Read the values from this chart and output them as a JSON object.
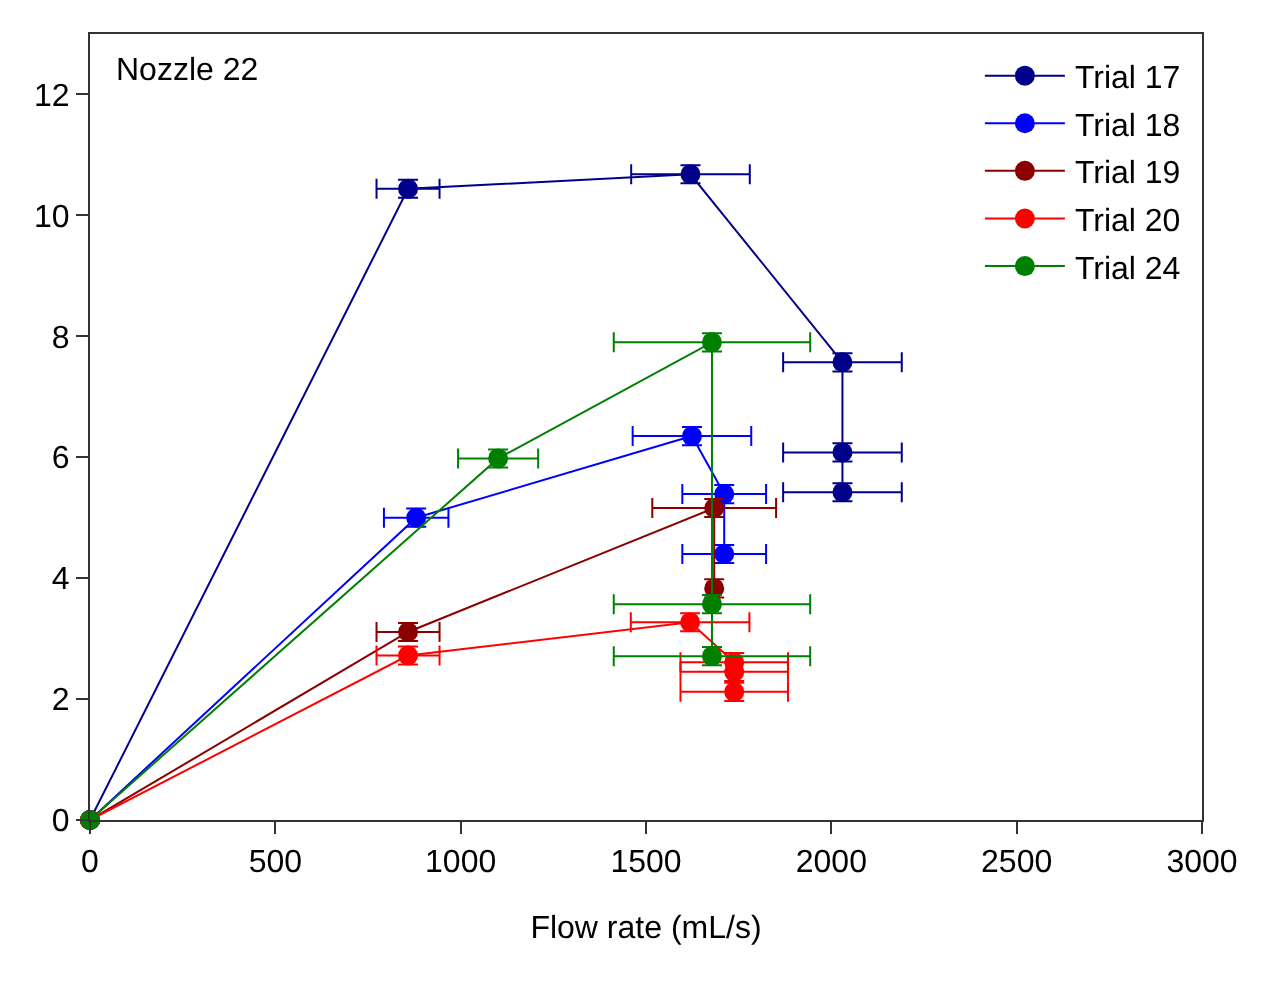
{
  "chart_data": {
    "type": "line",
    "xlabel": "Flow rate (mL/s)",
    "annotations": [
      "Nozzle 22"
    ],
    "xlim": [
      0,
      3000
    ],
    "xticks": [
      0,
      500,
      1000,
      1500,
      2000,
      2500,
      3000
    ],
    "ylim": [
      0,
      13
    ],
    "yticks": [
      0,
      2,
      4,
      6,
      8,
      10,
      12
    ],
    "legend": "top right",
    "marker": "circle",
    "line_style": "solid",
    "series": [
      {
        "name": "Trial 17",
        "color": "#00008b",
        "x": [
          0,
          858,
          1620,
          2030,
          2030,
          2030
        ],
        "values": [
          0,
          10.44,
          10.68,
          7.57,
          6.08,
          5.42
        ],
        "xerrors": [
          null,
          85,
          160,
          160,
          160,
          160
        ],
        "errors": [
          null,
          0.15,
          0.15,
          0.15,
          0.15,
          0.15
        ]
      },
      {
        "name": "Trial 18",
        "color": "#0000ff",
        "x": [
          0,
          880,
          1624,
          1711,
          1711
        ],
        "values": [
          0,
          5.0,
          6.35,
          5.39,
          4.4
        ],
        "xerrors": [
          null,
          87,
          160,
          113,
          113
        ],
        "errors": [
          null,
          0.15,
          0.15,
          0.15,
          0.15
        ]
      },
      {
        "name": "Trial 19",
        "color": "#8b0000",
        "x": [
          0,
          858,
          1684,
          1684
        ],
        "values": [
          0,
          3.11,
          5.16,
          3.83
        ],
        "xerrors": [
          null,
          85,
          167,
          null
        ],
        "errors": [
          null,
          0.15,
          0.15,
          0.15
        ]
      },
      {
        "name": "Trial 20",
        "color": "#ff0000",
        "x": [
          0,
          858,
          1619,
          1738,
          1738,
          1738
        ],
        "values": [
          0,
          2.72,
          3.27,
          2.61,
          2.45,
          2.12
        ],
        "xerrors": [
          null,
          85,
          160,
          145,
          145,
          145
        ],
        "errors": [
          null,
          0.15,
          0.15,
          0.15,
          0.15,
          0.15
        ]
      },
      {
        "name": "Trial 24",
        "color": "#008000",
        "x": [
          0,
          1101,
          1678,
          1678,
          1678
        ],
        "values": [
          0,
          5.98,
          7.9,
          3.57,
          2.71
        ],
        "xerrors": [
          null,
          108,
          265,
          265,
          265
        ],
        "errors": [
          null,
          0.15,
          0.15,
          0.15,
          0.15
        ]
      }
    ]
  }
}
